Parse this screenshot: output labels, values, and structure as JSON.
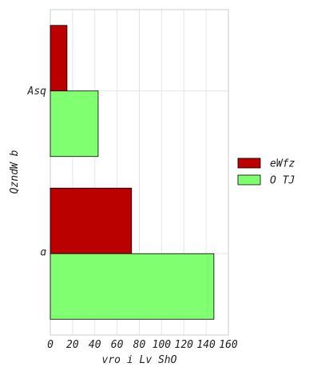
{
  "chart_data": {
    "type": "bar",
    "orientation": "horizontal",
    "categories": [
      "Asq",
      "ɑ"
    ],
    "series": [
      {
        "name": "eWfz",
        "color": "#bb0000",
        "values": [
          15,
          73
        ]
      },
      {
        "name": "O TJ",
        "color": "#80ff70",
        "values": [
          43,
          147
        ]
      }
    ],
    "xlabel": "vro i Lv ShO",
    "ylabel": "QzndW b",
    "xlim": [
      0,
      160
    ],
    "xticks": [
      0,
      20,
      40,
      60,
      80,
      100,
      120,
      140,
      160
    ],
    "grid": true,
    "legend_position": "right"
  }
}
